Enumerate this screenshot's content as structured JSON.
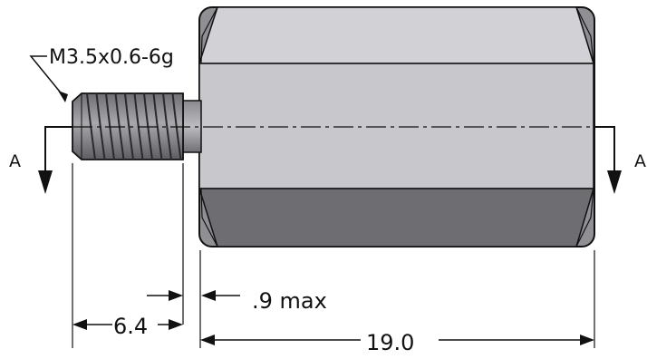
{
  "labels": {
    "thread_spec": "M3.5x0.6-6g",
    "section_left": "A",
    "section_right": "A",
    "relief_dim": ".9 max",
    "thread_length": "6.4",
    "overall_length": "19.0"
  },
  "colors": {
    "hex_top": "#d2d2d6",
    "hex_middle": "#c8c8cc",
    "hex_bottom": "#6e6d72",
    "hex_end_face": "#909094",
    "thread": "#7f7f83",
    "outline": "#111111"
  }
}
